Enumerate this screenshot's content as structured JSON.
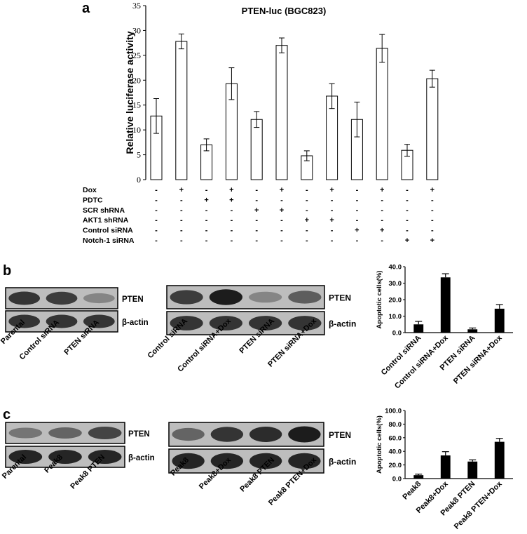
{
  "panels": {
    "a": "a",
    "b": "b",
    "c": "c"
  },
  "chart_data": [
    {
      "type": "bar",
      "panel": "a",
      "title": "PTEN-luc (BGC823)",
      "xlabel": "",
      "ylabel": "Relative luciferase activity",
      "ylim": [
        0,
        35
      ],
      "yticks": [
        0,
        5,
        10,
        15,
        20,
        25,
        30,
        35
      ],
      "values": [
        12.8,
        27.8,
        7.0,
        19.3,
        12.1,
        27.0,
        4.8,
        16.8,
        12.1,
        26.4,
        5.9,
        20.3
      ],
      "errors": [
        3.5,
        1.5,
        1.2,
        3.2,
        1.6,
        1.5,
        1.0,
        2.5,
        3.5,
        2.8,
        1.2,
        1.7
      ],
      "treatment_rows": [
        {
          "label": "Dox",
          "marks": [
            "-",
            "+",
            "-",
            "+",
            "-",
            "+",
            "-",
            "+",
            "-",
            "+",
            "-",
            "+"
          ]
        },
        {
          "label": "PDTC",
          "marks": [
            "-",
            "-",
            "+",
            "+",
            "-",
            "-",
            "-",
            "-",
            "-",
            "-",
            "-",
            "-"
          ]
        },
        {
          "label": "SCR shRNA",
          "marks": [
            "-",
            "-",
            "-",
            "-",
            "+",
            "+",
            "-",
            "-",
            "-",
            "-",
            "-",
            "-"
          ]
        },
        {
          "label": "AKT1 shRNA",
          "marks": [
            "-",
            "-",
            "-",
            "-",
            "-",
            "-",
            "+",
            "+",
            "-",
            "-",
            "-",
            "-"
          ]
        },
        {
          "label": "Control siRNA",
          "marks": [
            "-",
            "-",
            "-",
            "-",
            "-",
            "-",
            "-",
            "-",
            "+",
            "+",
            "-",
            "-"
          ]
        },
        {
          "label": "Notch-1 siRNA",
          "marks": [
            "-",
            "-",
            "-",
            "-",
            "-",
            "-",
            "-",
            "-",
            "-",
            "-",
            "+",
            "+"
          ]
        }
      ],
      "grid": false,
      "fill": "#ffffff"
    },
    {
      "type": "bar",
      "panel": "b",
      "title": "",
      "ylabel": "Apoptotic cells(%)",
      "ylim": [
        0,
        40
      ],
      "ytick_labels": [
        "0.0",
        "10.0",
        "20.0",
        "30.0",
        "40.0"
      ],
      "categories": [
        "Control siRNA",
        "Control siRNA+Dox",
        "PTEN siRNA",
        "PTEN siRNA+Dox"
      ],
      "values": [
        5.0,
        33.5,
        2.0,
        14.5
      ],
      "errors": [
        1.8,
        2.2,
        0.8,
        2.5
      ],
      "fill": "#000000"
    },
    {
      "type": "bar",
      "panel": "c",
      "title": "",
      "ylabel": "Apoptotic cells(%)",
      "ylim": [
        0,
        100
      ],
      "ytick_labels": [
        "0.0",
        "20.0",
        "40.0",
        "60.0",
        "80.0",
        "100.0"
      ],
      "categories": [
        "Peak8",
        "Peak8+Dox",
        "Peak8 PTEN",
        "Peak8 PTEN+Dox"
      ],
      "values": [
        5.0,
        34.0,
        25.0,
        54.0
      ],
      "errors": [
        1.5,
        5.5,
        2.5,
        5.0
      ],
      "fill": "#000000"
    }
  ],
  "blots": {
    "b_left": {
      "rows": [
        "PTEN",
        "β-actin"
      ],
      "lanes": [
        "Parental",
        "Control siRNA",
        "PTEN siRNA"
      ],
      "intensities": {
        "PTEN": [
          0.85,
          0.8,
          0.35
        ],
        "β-actin": [
          0.85,
          0.85,
          0.85
        ]
      }
    },
    "b_right": {
      "rows": [
        "PTEN",
        "β-actin"
      ],
      "lanes": [
        "Control siRNA",
        "Control siRNA+Dox",
        "PTEN siRNA",
        "PTEN siRNA+Dox"
      ],
      "intensities": {
        "PTEN": [
          0.8,
          1.0,
          0.35,
          0.6
        ],
        "β-actin": [
          0.85,
          0.85,
          0.85,
          0.85
        ]
      }
    },
    "c_left": {
      "rows": [
        "PTEN",
        "β-actin"
      ],
      "lanes": [
        "Parental",
        "Peak8",
        "Peak8 PTEN"
      ],
      "intensities": {
        "PTEN": [
          0.45,
          0.55,
          0.75
        ],
        "β-actin": [
          0.95,
          0.95,
          0.95
        ]
      }
    },
    "c_right": {
      "rows": [
        "PTEN",
        "β-actin"
      ],
      "lanes": [
        "Peak8",
        "Peak8+Dox",
        "Peak8 PTEN",
        "Peak8 PTEN+Dox"
      ],
      "intensities": {
        "PTEN": [
          0.55,
          0.85,
          0.9,
          1.0
        ],
        "β-actin": [
          0.95,
          0.95,
          0.95,
          0.95
        ]
      }
    }
  }
}
